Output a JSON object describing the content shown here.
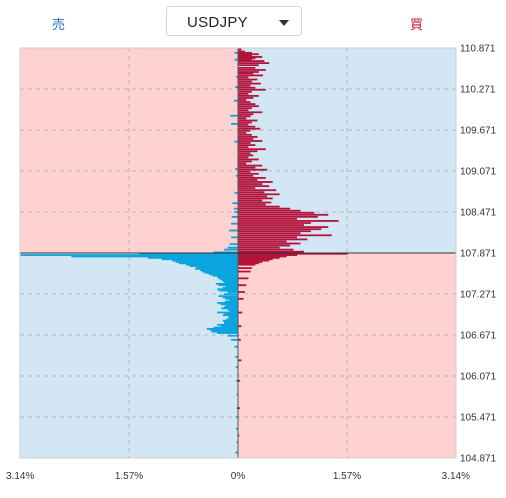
{
  "header": {
    "sell_label": "売",
    "buy_label": "買",
    "pair": "USDJPY"
  },
  "colors": {
    "sell_bar": "#0aa5e0",
    "buy_bar": "#b5123b",
    "blue_zone": "#d2e6f4",
    "pink_zone": "#ffd1d1",
    "grid": "#b8b8b8"
  },
  "chart_data": {
    "type": "bar",
    "orientation": "horizontal",
    "title": "",
    "current_price": 107.871,
    "y_ticks": [
      "110.871",
      "110.271",
      "109.671",
      "109.071",
      "108.471",
      "107.871",
      "107.271",
      "106.671",
      "106.071",
      "105.471",
      "104.871"
    ],
    "ylim": [
      104.871,
      110.871
    ],
    "x_ticks": [
      "3.14%",
      "1.57%",
      "0%",
      "1.57%",
      "3.14%"
    ],
    "xlim": [
      -3.14,
      3.14
    ],
    "grid": true,
    "series": [
      {
        "name": "売",
        "side": "left",
        "x": [
          110.8,
          110.7,
          110.45,
          110.3,
          110.1,
          109.88,
          109.76,
          109.5,
          109.1,
          109.0,
          108.75,
          108.6,
          108.52,
          108.47,
          108.4,
          108.3,
          108.2,
          108.1,
          108.0,
          107.95,
          107.92,
          107.88,
          107.86,
          107.84,
          107.82,
          107.8,
          107.78,
          107.76,
          107.74,
          107.72,
          107.7,
          107.68,
          107.66,
          107.64,
          107.62,
          107.6,
          107.58,
          107.56,
          107.54,
          107.52,
          107.5,
          107.48,
          107.46,
          107.44,
          107.42,
          107.4,
          107.38,
          107.36,
          107.34,
          107.32,
          107.3,
          107.27,
          107.24,
          107.22,
          107.2,
          107.18,
          107.16,
          107.14,
          107.12,
          107.1,
          107.08,
          107.06,
          107.04,
          107.02,
          107.0,
          106.98,
          106.96,
          106.94,
          106.92,
          106.9,
          106.88,
          106.86,
          106.84,
          106.82,
          106.8,
          106.78,
          106.76,
          106.74,
          106.72,
          106.7,
          106.66,
          106.6,
          106.5,
          106.35,
          106.2,
          106.0,
          105.8,
          105.6,
          105.47,
          105.3,
          105.1,
          104.95
        ],
        "values": [
          0.05,
          0.05,
          0.03,
          0.04,
          0.06,
          0.11,
          0.1,
          0.05,
          0.04,
          0.03,
          0.05,
          0.08,
          0.06,
          0.05,
          0.09,
          0.1,
          0.13,
          0.1,
          0.12,
          0.15,
          0.2,
          0.35,
          1.42,
          3.14,
          2.4,
          1.3,
          1.1,
          0.95,
          0.9,
          0.85,
          0.75,
          0.7,
          0.6,
          0.62,
          0.55,
          0.52,
          0.48,
          0.42,
          0.37,
          0.3,
          0.28,
          0.25,
          0.22,
          0.2,
          0.32,
          0.28,
          0.18,
          0.22,
          0.3,
          0.27,
          0.15,
          0.2,
          0.28,
          0.22,
          0.18,
          0.12,
          0.19,
          0.3,
          0.25,
          0.18,
          0.2,
          0.24,
          0.15,
          0.12,
          0.3,
          0.2,
          0.22,
          0.14,
          0.13,
          0.17,
          0.22,
          0.2,
          0.2,
          0.3,
          0.25,
          0.35,
          0.45,
          0.4,
          0.38,
          0.3,
          0.15,
          0.1,
          0.05,
          0.04,
          0.03,
          0.03,
          0.02,
          0.02,
          0.03,
          0.03,
          0.02,
          0.04
        ]
      },
      {
        "name": "買",
        "side": "right",
        "x": [
          110.85,
          110.82,
          110.8,
          110.78,
          110.76,
          110.74,
          110.72,
          110.7,
          110.68,
          110.65,
          110.62,
          110.58,
          110.55,
          110.52,
          110.5,
          110.47,
          110.44,
          110.41,
          110.38,
          110.35,
          110.32,
          110.29,
          110.26,
          110.23,
          110.2,
          110.17,
          110.14,
          110.11,
          110.08,
          110.05,
          110.02,
          109.99,
          109.96,
          109.93,
          109.9,
          109.87,
          109.84,
          109.81,
          109.78,
          109.75,
          109.72,
          109.69,
          109.66,
          109.63,
          109.6,
          109.57,
          109.54,
          109.51,
          109.48,
          109.45,
          109.42,
          109.39,
          109.36,
          109.33,
          109.3,
          109.27,
          109.24,
          109.21,
          109.18,
          109.15,
          109.12,
          109.09,
          109.06,
          109.03,
          109.0,
          108.97,
          108.94,
          108.91,
          108.88,
          108.85,
          108.82,
          108.79,
          108.76,
          108.73,
          108.7,
          108.67,
          108.64,
          108.61,
          108.58,
          108.55,
          108.52,
          108.49,
          108.46,
          108.43,
          108.4,
          108.37,
          108.34,
          108.31,
          108.28,
          108.25,
          108.22,
          108.19,
          108.16,
          108.13,
          108.1,
          108.07,
          108.04,
          108.01,
          107.98,
          107.95,
          107.92,
          107.89,
          107.86,
          107.84,
          107.82,
          107.8,
          107.78,
          107.76,
          107.74,
          107.72,
          107.7,
          107.65,
          107.6,
          107.5,
          107.4,
          107.3,
          107.2,
          107.0,
          106.8,
          106.6,
          106.3,
          106.0,
          105.6,
          105.2
        ],
        "values": [
          0.05,
          0.1,
          0.2,
          0.3,
          0.2,
          0.35,
          0.25,
          0.2,
          0.38,
          0.45,
          0.3,
          0.25,
          0.4,
          0.3,
          0.22,
          0.36,
          0.15,
          0.28,
          0.2,
          0.33,
          0.18,
          0.25,
          0.4,
          0.2,
          0.15,
          0.3,
          0.22,
          0.12,
          0.18,
          0.25,
          0.3,
          0.2,
          0.15,
          0.35,
          0.22,
          0.18,
          0.12,
          0.28,
          0.2,
          0.15,
          0.25,
          0.32,
          0.18,
          0.12,
          0.2,
          0.28,
          0.22,
          0.35,
          0.18,
          0.25,
          0.15,
          0.4,
          0.28,
          0.18,
          0.22,
          0.15,
          0.3,
          0.2,
          0.12,
          0.35,
          0.25,
          0.42,
          0.18,
          0.3,
          0.22,
          0.4,
          0.28,
          0.5,
          0.35,
          0.45,
          0.25,
          0.55,
          0.38,
          0.6,
          0.42,
          0.5,
          0.35,
          0.48,
          0.4,
          0.6,
          0.75,
          0.9,
          1.1,
          1.3,
          1.15,
          0.85,
          1.45,
          1.05,
          0.95,
          1.3,
          1.2,
          1.05,
          0.9,
          1.35,
          0.85,
          1.0,
          0.7,
          0.9,
          0.75,
          0.6,
          0.8,
          0.95,
          1.58,
          0.85,
          0.7,
          0.6,
          0.5,
          0.45,
          0.35,
          0.3,
          0.25,
          0.2,
          0.18,
          0.15,
          0.12,
          0.1,
          0.08,
          0.06,
          0.05,
          0.04,
          0.05,
          0.03,
          0.03,
          0.02
        ]
      }
    ]
  }
}
